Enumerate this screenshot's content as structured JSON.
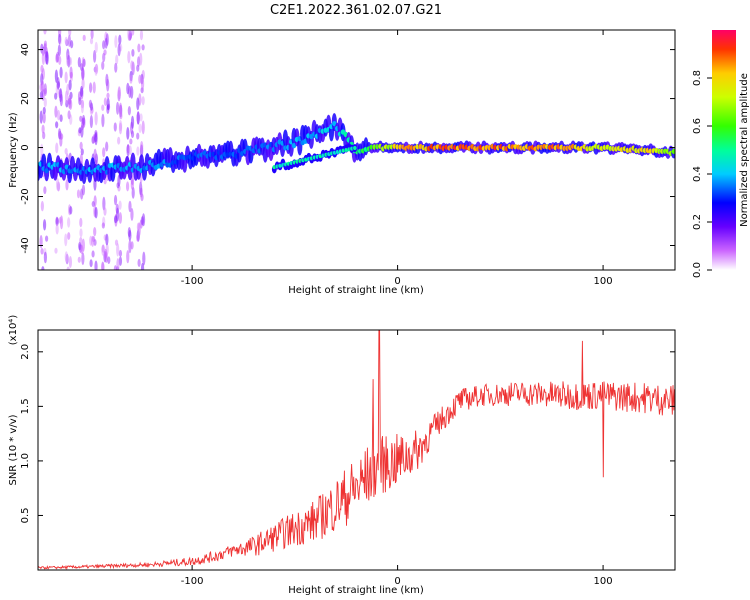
{
  "title": "C2E1.2022.361.02.07.G21",
  "chart_data": [
    {
      "type": "heatmap",
      "title": "C2E1.2022.361.02.07.G21",
      "xlabel": "Height of straight line (km)",
      "ylabel": "Frequency (Hz)",
      "xlim": [
        -175,
        135
      ],
      "ylim": [
        -50,
        48
      ],
      "xticks": [
        -100,
        0,
        100
      ],
      "xtick_labels": [
        "-100",
        "0",
        "100"
      ],
      "yticks": [
        -40,
        -20,
        0,
        20,
        40
      ],
      "ytick_labels": [
        "-40",
        "-20",
        "0",
        "20",
        "40"
      ],
      "ridge": {
        "description": "dominant spectral ridge (x km, frequency Hz)",
        "x": [
          -175,
          -150,
          -125,
          -100,
          -75,
          -50,
          -30,
          -20,
          -10,
          0,
          20,
          50,
          80,
          100,
          120,
          135
        ],
        "frequency": [
          -8,
          -9,
          -8,
          -4,
          -2,
          2,
          9,
          -1,
          0,
          0,
          0,
          0,
          0,
          0,
          -1,
          -2
        ]
      },
      "secondary_branch": {
        "description": "lower branch (x km, frequency Hz)",
        "x": [
          -60,
          -50,
          -40,
          -30,
          -20
        ],
        "frequency": [
          -8,
          -6,
          -4,
          -2,
          0
        ]
      },
      "amplitude_along_ridge": {
        "x": [
          -175,
          -125,
          -100,
          -75,
          -50,
          -30,
          -15,
          0,
          20,
          50,
          80,
          100,
          120,
          135
        ],
        "amplitude": [
          0.4,
          0.4,
          0.35,
          0.35,
          0.4,
          0.45,
          0.6,
          0.85,
          0.95,
          0.95,
          0.9,
          0.8,
          0.85,
          0.7
        ]
      },
      "noise_columns_x": [
        -172,
        -165,
        -160,
        -154,
        -148,
        -142,
        -136,
        -130,
        -125
      ],
      "colorbar": {
        "label": "Normalized spectral amplitude",
        "range": [
          0,
          1
        ],
        "ticks": [
          0.0,
          0.2,
          0.4,
          0.6,
          0.8
        ],
        "tick_labels": [
          "0.0",
          "0.2",
          "0.4",
          "0.6",
          "0.8"
        ]
      }
    },
    {
      "type": "line",
      "xlabel": "Height of straight line (km)",
      "ylabel": "SNR (10 * v/v)",
      "multiplier": "(x10⁴)",
      "xlim": [
        -175,
        135
      ],
      "ylim": [
        0,
        2.2
      ],
      "xticks": [
        -100,
        0,
        100
      ],
      "xtick_labels": [
        "-100",
        "0",
        "100"
      ],
      "yticks": [
        0.5,
        1.0,
        1.5,
        2.0
      ],
      "ytick_labels": [
        "0.5",
        "1.0",
        "1.5",
        "2.0"
      ],
      "color": "#ee3333",
      "trend": {
        "x": [
          -175,
          -150,
          -120,
          -100,
          -90,
          -80,
          -70,
          -60,
          -50,
          -40,
          -30,
          -20,
          -15,
          -10,
          0,
          10,
          20,
          30,
          40,
          60,
          80,
          100,
          120,
          135
        ],
        "snr": [
          0.02,
          0.03,
          0.05,
          0.08,
          0.12,
          0.18,
          0.22,
          0.3,
          0.38,
          0.45,
          0.6,
          0.75,
          0.85,
          0.95,
          1.0,
          1.1,
          1.35,
          1.55,
          1.6,
          1.62,
          1.6,
          1.6,
          1.58,
          1.55
        ]
      },
      "noise_amplitude": {
        "x": [
          -175,
          -120,
          -80,
          -40,
          -20,
          0,
          20,
          40,
          80,
          135
        ],
        "amp": [
          0.01,
          0.02,
          0.06,
          0.2,
          0.3,
          0.25,
          0.12,
          0.1,
          0.13,
          0.15
        ]
      },
      "spikes": [
        {
          "x": -9,
          "snr": 2.2
        },
        {
          "x": -12,
          "snr": 1.75
        },
        {
          "x": 90,
          "snr": 2.1
        },
        {
          "x": 100,
          "snr": 0.85
        }
      ]
    }
  ]
}
